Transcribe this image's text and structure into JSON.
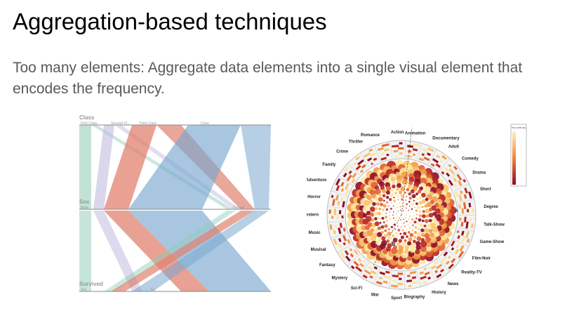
{
  "slide": {
    "title": "Aggregation-based techniques",
    "subtitle": "Too many elements: Aggregate data elements into a single visual element that encodes the frequency."
  },
  "parallel_sets": {
    "dimensions": [
      {
        "name": "Class",
        "categories": [
          "First Class",
          "Second Cl...",
          "Third Class",
          "Crew"
        ]
      },
      {
        "name": "Sex",
        "categories": [
          "Male",
          "Female"
        ]
      },
      {
        "name": "Survived",
        "categories": [
          "Yes",
          "No"
        ]
      }
    ],
    "colors": {
      "first": "#8fcbb5",
      "second": "#bcb6dc",
      "third": "#e0826f",
      "crew": "#7aa8d0"
    }
  },
  "radial_chart": {
    "genres": [
      "Action",
      "Animation",
      "Documentary",
      "Adult",
      "Comedy",
      "Drama",
      "Short",
      "Degree",
      "Talk-Show",
      "Game-Show",
      "Film-Noir",
      "Reality-TV",
      "News",
      "History",
      "Biography",
      "Sport",
      "War",
      "Sci-Fi",
      "Mystery",
      "Fantasy",
      "Musical",
      "Music",
      "Western",
      "Horror",
      "Adventure",
      "Family",
      "Crime",
      "Thriller",
      "Romance"
    ],
    "markers": [
      "a",
      "b"
    ],
    "legend_title": "Year (first air)",
    "colors": {
      "low": "#fde7a0",
      "mid": "#f0843a",
      "high": "#8f0b25"
    }
  }
}
